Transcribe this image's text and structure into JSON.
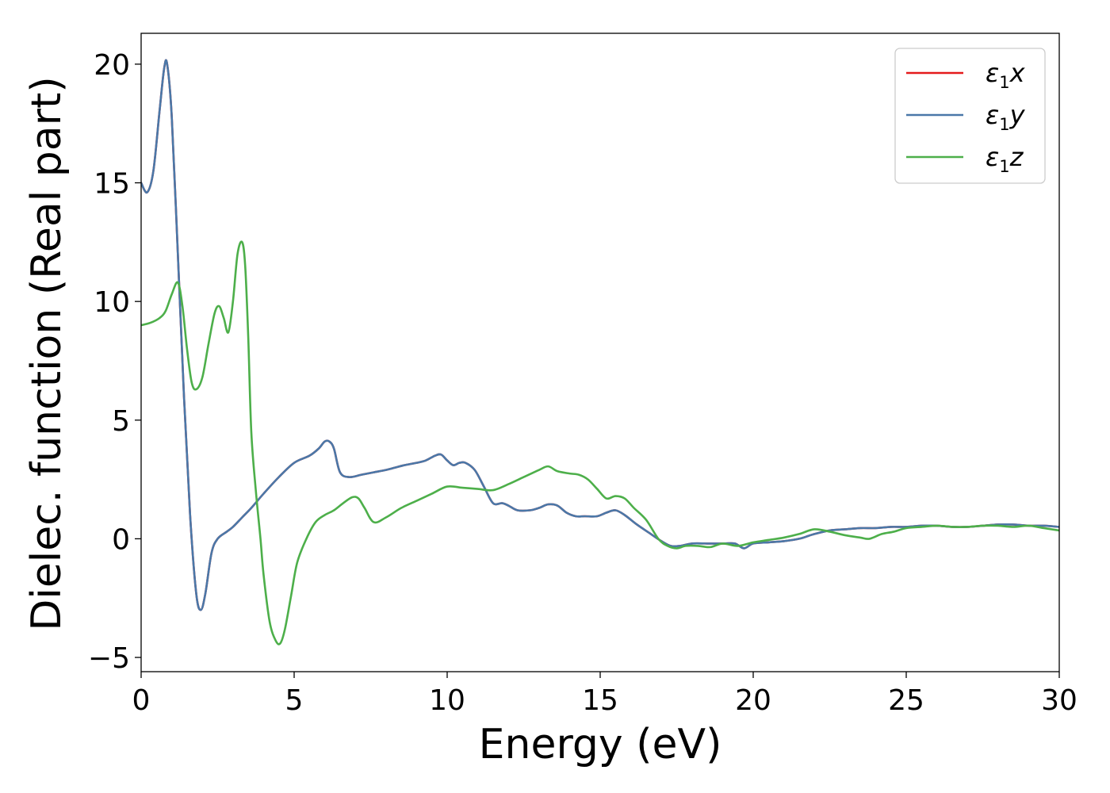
{
  "chart_data": {
    "type": "line",
    "xlabel": "Energy (eV)",
    "ylabel": "Dielec. function (Real part)",
    "xlim": [
      0,
      30
    ],
    "ylim": [
      -5.6,
      21.3
    ],
    "xticks": [
      0,
      5,
      10,
      15,
      20,
      25,
      30
    ],
    "xtick_labels": [
      "0",
      "5",
      "10",
      "15",
      "20",
      "25",
      "30"
    ],
    "yticks": [
      -5,
      0,
      5,
      10,
      15,
      20
    ],
    "ytick_labels": [
      "−5",
      "0",
      "5",
      "10",
      "15",
      "20"
    ],
    "grid": false,
    "legend_position": "top-right",
    "series": [
      {
        "name": "ε1x",
        "legend_base": "ε",
        "legend_sub": "1",
        "legend_tail": "x",
        "color": "#e41a1c",
        "x": [
          0,
          0.2,
          0.4,
          0.6,
          0.75,
          0.85,
          1.0,
          1.2,
          1.4,
          1.6,
          1.8,
          1.95,
          2.1,
          2.3,
          2.5,
          2.8,
          3.0,
          3.3,
          3.6,
          4.0,
          4.5,
          5.0,
          5.5,
          5.8,
          6.0,
          6.15,
          6.3,
          6.5,
          6.8,
          7.2,
          7.6,
          8.0,
          8.3,
          8.6,
          9.0,
          9.3,
          9.6,
          9.8,
          10.0,
          10.2,
          10.4,
          10.6,
          10.9,
          11.2,
          11.5,
          11.8,
          12.0,
          12.3,
          12.7,
          13.0,
          13.3,
          13.6,
          13.9,
          14.2,
          14.5,
          14.9,
          15.2,
          15.5,
          15.8,
          16.2,
          16.6,
          17.0,
          17.3,
          17.6,
          18.0,
          18.5,
          19.0,
          19.4,
          19.7,
          20.0,
          20.5,
          21.0,
          21.5,
          22.0,
          22.5,
          23.0,
          23.5,
          24.0,
          24.5,
          25.0,
          25.5,
          26.0,
          26.5,
          27.0,
          27.5,
          28.0,
          28.5,
          29.0,
          29.5,
          30.0
        ],
        "y": [
          15.0,
          14.6,
          15.5,
          18.0,
          19.8,
          20.0,
          17.8,
          12.0,
          6.0,
          1.0,
          -2.3,
          -3.0,
          -2.3,
          -0.6,
          0.0,
          0.3,
          0.5,
          0.9,
          1.3,
          1.9,
          2.6,
          3.2,
          3.5,
          3.8,
          4.1,
          4.1,
          3.8,
          2.8,
          2.6,
          2.7,
          2.8,
          2.9,
          3.0,
          3.1,
          3.2,
          3.3,
          3.5,
          3.55,
          3.3,
          3.1,
          3.2,
          3.2,
          2.9,
          2.2,
          1.5,
          1.5,
          1.4,
          1.2,
          1.2,
          1.3,
          1.45,
          1.4,
          1.1,
          0.95,
          0.95,
          0.95,
          1.1,
          1.2,
          1.0,
          0.6,
          0.25,
          -0.1,
          -0.3,
          -0.3,
          -0.2,
          -0.2,
          -0.2,
          -0.2,
          -0.4,
          -0.2,
          -0.15,
          -0.1,
          0.0,
          0.2,
          0.35,
          0.4,
          0.45,
          0.45,
          0.5,
          0.5,
          0.55,
          0.55,
          0.5,
          0.5,
          0.55,
          0.6,
          0.6,
          0.55,
          0.55,
          0.5
        ]
      },
      {
        "name": "ε1y",
        "legend_base": "ε",
        "legend_sub": "1",
        "legend_tail": "y",
        "color": "#4a78a8",
        "x": [
          0,
          0.2,
          0.4,
          0.6,
          0.75,
          0.85,
          1.0,
          1.2,
          1.4,
          1.6,
          1.8,
          1.95,
          2.1,
          2.3,
          2.5,
          2.8,
          3.0,
          3.3,
          3.6,
          4.0,
          4.5,
          5.0,
          5.5,
          5.8,
          6.0,
          6.15,
          6.3,
          6.5,
          6.8,
          7.2,
          7.6,
          8.0,
          8.3,
          8.6,
          9.0,
          9.3,
          9.6,
          9.8,
          10.0,
          10.2,
          10.4,
          10.6,
          10.9,
          11.2,
          11.5,
          11.8,
          12.0,
          12.3,
          12.7,
          13.0,
          13.3,
          13.6,
          13.9,
          14.2,
          14.5,
          14.9,
          15.2,
          15.5,
          15.8,
          16.2,
          16.6,
          17.0,
          17.3,
          17.6,
          18.0,
          18.5,
          19.0,
          19.4,
          19.7,
          20.0,
          20.5,
          21.0,
          21.5,
          22.0,
          22.5,
          23.0,
          23.5,
          24.0,
          24.5,
          25.0,
          25.5,
          26.0,
          26.5,
          27.0,
          27.5,
          28.0,
          28.5,
          29.0,
          29.5,
          30.0
        ],
        "y": [
          15.0,
          14.6,
          15.5,
          18.0,
          19.8,
          20.0,
          17.8,
          12.0,
          6.0,
          1.0,
          -2.3,
          -3.0,
          -2.3,
          -0.6,
          0.0,
          0.3,
          0.5,
          0.9,
          1.3,
          1.9,
          2.6,
          3.2,
          3.5,
          3.8,
          4.1,
          4.1,
          3.8,
          2.8,
          2.6,
          2.7,
          2.8,
          2.9,
          3.0,
          3.1,
          3.2,
          3.3,
          3.5,
          3.55,
          3.3,
          3.1,
          3.2,
          3.2,
          2.9,
          2.2,
          1.5,
          1.5,
          1.4,
          1.2,
          1.2,
          1.3,
          1.45,
          1.4,
          1.1,
          0.95,
          0.95,
          0.95,
          1.1,
          1.2,
          1.0,
          0.6,
          0.25,
          -0.1,
          -0.3,
          -0.3,
          -0.2,
          -0.2,
          -0.2,
          -0.2,
          -0.4,
          -0.2,
          -0.15,
          -0.1,
          0.0,
          0.2,
          0.35,
          0.4,
          0.45,
          0.45,
          0.5,
          0.5,
          0.55,
          0.55,
          0.5,
          0.5,
          0.55,
          0.6,
          0.6,
          0.55,
          0.55,
          0.5
        ]
      },
      {
        "name": "ε1z",
        "legend_base": "ε",
        "legend_sub": "1",
        "legend_tail": "z",
        "color": "#4daf4a",
        "x": [
          0,
          0.3,
          0.6,
          0.8,
          1.0,
          1.2,
          1.35,
          1.5,
          1.65,
          1.8,
          2.0,
          2.2,
          2.4,
          2.55,
          2.7,
          2.85,
          3.0,
          3.15,
          3.3,
          3.4,
          3.5,
          3.6,
          3.75,
          3.9,
          4.0,
          4.2,
          4.4,
          4.55,
          4.7,
          4.9,
          5.1,
          5.4,
          5.7,
          6.0,
          6.3,
          6.6,
          6.9,
          7.1,
          7.3,
          7.6,
          8.0,
          8.5,
          9.0,
          9.5,
          10.0,
          10.5,
          11.0,
          11.5,
          12.0,
          12.5,
          13.0,
          13.3,
          13.6,
          14.0,
          14.3,
          14.6,
          14.9,
          15.2,
          15.5,
          15.8,
          16.1,
          16.5,
          16.9,
          17.2,
          17.5,
          17.8,
          18.2,
          18.6,
          19.0,
          19.5,
          20.0,
          20.5,
          21.0,
          21.5,
          22.0,
          22.5,
          23.0,
          23.5,
          23.8,
          24.2,
          24.6,
          25.0,
          25.5,
          26.0,
          26.5,
          27.0,
          27.5,
          28.0,
          28.5,
          29.0,
          29.5,
          30.0
        ],
        "y": [
          9.0,
          9.1,
          9.3,
          9.6,
          10.3,
          10.8,
          9.8,
          8.0,
          6.6,
          6.3,
          6.8,
          8.2,
          9.5,
          9.8,
          9.3,
          8.7,
          10.0,
          12.0,
          12.5,
          11.5,
          8.5,
          4.5,
          2.0,
          0.0,
          -1.5,
          -3.5,
          -4.3,
          -4.4,
          -3.8,
          -2.4,
          -1.0,
          0.0,
          0.7,
          1.0,
          1.2,
          1.5,
          1.75,
          1.7,
          1.3,
          0.7,
          0.9,
          1.3,
          1.6,
          1.9,
          2.2,
          2.15,
          2.1,
          2.05,
          2.3,
          2.6,
          2.9,
          3.05,
          2.85,
          2.75,
          2.7,
          2.5,
          2.1,
          1.7,
          1.8,
          1.7,
          1.3,
          0.8,
          0.0,
          -0.3,
          -0.4,
          -0.3,
          -0.3,
          -0.35,
          -0.2,
          -0.3,
          -0.15,
          -0.05,
          0.05,
          0.2,
          0.4,
          0.3,
          0.15,
          0.05,
          0.0,
          0.2,
          0.3,
          0.45,
          0.5,
          0.55,
          0.5,
          0.5,
          0.55,
          0.55,
          0.5,
          0.55,
          0.45,
          0.35
        ]
      }
    ]
  }
}
